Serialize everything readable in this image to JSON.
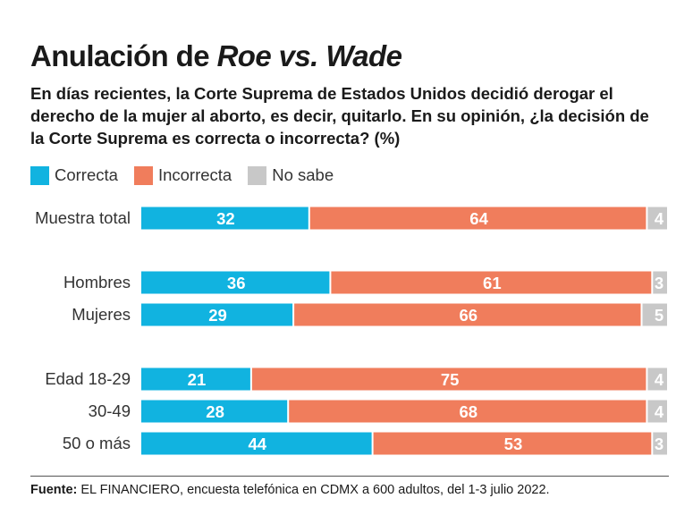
{
  "title_part1": "Anulación de ",
  "title_part2": "Roe vs. Wade",
  "subtitle": "En días recientes, la Corte Suprema de Estados Unidos decidió derogar el derecho de la mujer al aborto, es decir, quitarlo. En su opinión, ¿la decisión de la Corte Suprema es correcta o incorrecta? (%)",
  "source": {
    "label": "Fuente:",
    "text": " EL FINANCIERO, encuesta telefónica en CDMX a 600 adultos, del 1-3 julio 2022."
  },
  "colors": {
    "correcta": "#11b3e0",
    "incorrecta": "#f07d5c",
    "no_sabe": "#c8c8c8"
  },
  "chart_data": {
    "type": "bar",
    "orientation": "horizontal",
    "stacked": true,
    "unit": "%",
    "xlim": [
      0,
      100
    ],
    "legend_position": "top-left",
    "grid": false,
    "categories": [
      "Muestra total",
      "Hombres",
      "Mujeres",
      "Edad 18-29",
      "30-49",
      "50 o más"
    ],
    "series": [
      {
        "name": "Correcta",
        "values": [
          32,
          36,
          29,
          21,
          28,
          44
        ]
      },
      {
        "name": "Incorrecta",
        "values": [
          64,
          61,
          66,
          75,
          68,
          53
        ]
      },
      {
        "name": "No sabe",
        "values": [
          4,
          3,
          5,
          4,
          4,
          3
        ]
      }
    ]
  }
}
